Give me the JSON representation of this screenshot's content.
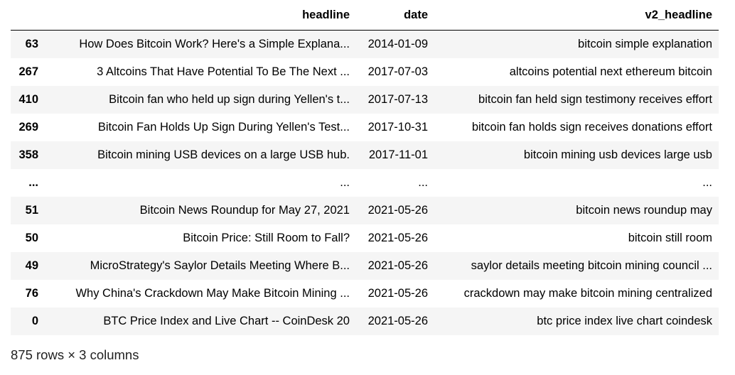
{
  "table": {
    "columns": [
      "headline",
      "date",
      "v2_headline"
    ],
    "rows": [
      {
        "index": "63",
        "headline": "How Does Bitcoin Work? Here's a Simple Explana...",
        "date": "2014-01-09",
        "v2_headline": "bitcoin simple explanation"
      },
      {
        "index": "267",
        "headline": "3 Altcoins That Have Potential To Be The Next ...",
        "date": "2017-07-03",
        "v2_headline": "altcoins potential next ethereum bitcoin"
      },
      {
        "index": "410",
        "headline": "Bitcoin fan who held up sign during Yellen's t...",
        "date": "2017-07-13",
        "v2_headline": "bitcoin fan held sign testimony receives effort"
      },
      {
        "index": "269",
        "headline": "Bitcoin Fan Holds Up Sign During Yellen's Test...",
        "date": "2017-10-31",
        "v2_headline": "bitcoin fan holds sign receives donations effort"
      },
      {
        "index": "358",
        "headline": "Bitcoin mining USB devices on a large USB hub.",
        "date": "2017-11-01",
        "v2_headline": "bitcoin mining usb devices large usb"
      },
      {
        "index": "...",
        "headline": "...",
        "date": "...",
        "v2_headline": "..."
      },
      {
        "index": "51",
        "headline": "Bitcoin News Roundup for May 27, 2021",
        "date": "2021-05-26",
        "v2_headline": "bitcoin news roundup may"
      },
      {
        "index": "50",
        "headline": "Bitcoin Price: Still Room to Fall?",
        "date": "2021-05-26",
        "v2_headline": "bitcoin still room"
      },
      {
        "index": "49",
        "headline": "MicroStrategy's Saylor Details Meeting Where B...",
        "date": "2021-05-26",
        "v2_headline": "saylor details meeting bitcoin mining council ..."
      },
      {
        "index": "76",
        "headline": "Why China's Crackdown May Make Bitcoin Mining ...",
        "date": "2021-05-26",
        "v2_headline": "crackdown may make bitcoin mining centralized"
      },
      {
        "index": "0",
        "headline": "BTC Price Index and Live Chart -- CoinDesk 20",
        "date": "2021-05-26",
        "v2_headline": "btc price index live chart coindesk"
      }
    ]
  },
  "shape_text": "875 rows × 3 columns"
}
